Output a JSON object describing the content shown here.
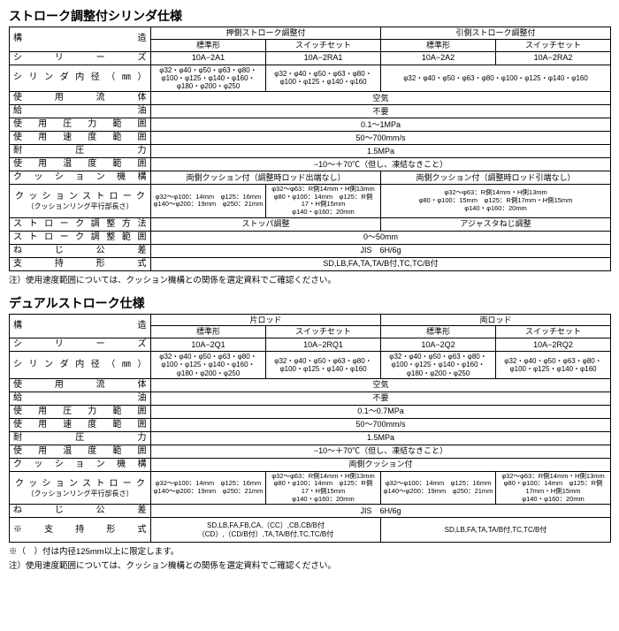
{
  "table1": {
    "title": "ストローク調整付シリンダ仕様",
    "header_group1": "押側ストローク調整付",
    "header_group2": "引側ストローク調整付",
    "sub_std": "標準形",
    "sub_sw": "スイッチセット",
    "rows": {
      "kouzou": "構　　　　　　　　　造",
      "series": "シ　リ　ー　ズ",
      "series_v": [
        "10A−2A1",
        "10A−2RA1",
        "10A−2A2",
        "10A−2RA2"
      ],
      "bore": "シリンダ内径（㎜）",
      "bore_v1": "φ32・φ40・φ50・φ63・φ80・φ100・φ125・φ140・φ160・φ180・φ200・φ250",
      "bore_v2": "φ32・φ40・φ50・φ63・φ80・φ100・φ125・φ140・φ160",
      "bore_v34": "φ32・φ40・φ50・φ63・φ80・φ100・φ125・φ140・φ160",
      "fluid": "使　用　流　体",
      "fluid_v": "空気",
      "oil": "給　　　　　　　油",
      "oil_v": "不要",
      "press": "使 用 圧 力 範 囲",
      "press_v": "0.1〜1MPa",
      "speed": "使 用 速 度 範 囲",
      "speed_v": "50〜700mm/s",
      "proof": "耐　　圧　　力",
      "proof_v": "1.5MPa",
      "temp": "使 用 温 度 範 囲",
      "temp_v": "−10〜＋70℃（但し、凍結なきこと）",
      "cushion": "ク ッ シ ョ ン 機 構",
      "cushion_v12": "両側クッション付（調整時ロッド出端なし）",
      "cushion_v34": "両側クッション付（調整時ロッド引端なし）",
      "cstroke": "クッションストローク",
      "cstroke_sub": "（クッションリング平行部長さ）",
      "cs1": "φ32〜φ100：14mm　φ125：16mm\nφ140〜φ200：19mm　φ250：21mm",
      "cs2": "φ32〜φ63：R側14mm・H側13mm\nφ80・φ100：14mm　φ125：R側17・H側15mm\nφ140・φ160：20mm",
      "cs34": "φ32〜φ63：R側14mm・H側13mm\nφ80・φ100：15mm　φ125：R側17mm・H側15mm\nφ140・φ160：20mm",
      "adjmethod": "ス ト ロ ー ク 調 整 方 法",
      "adj12": "ストッパ調整",
      "adj34": "アジャスタねじ調整",
      "adjrange": "ス ト ロ ー ク 調 整 範 囲",
      "adjrange_v": "0〜50mm",
      "thread": "ね　じ　公　差",
      "thread_v": "JIS　6H/6g",
      "mount": "支　持　形　式",
      "mount_v": "SD,LB,FA,TA,TA/B付,TC,TC/B付"
    },
    "note": "注）使用速度範囲については、クッション機構との関係を選定資料でご確認ください。"
  },
  "table2": {
    "title": "デュアルストローク仕様",
    "header_group1": "片ロッド",
    "header_group2": "両ロッド",
    "sub_std": "標準形",
    "sub_sw": "スイッチセット",
    "rows": {
      "kouzou": "構　　　　　　　　　造",
      "series": "シ　リ　ー　ズ",
      "series_v": [
        "10A−2Q1",
        "10A−2RQ1",
        "10A−2Q2",
        "10A−2RQ2"
      ],
      "bore": "シリンダ内径（㎜）",
      "b1": "φ32・φ40・φ50・φ63・φ80・φ100・φ125・φ140・φ160・φ180・φ200・φ250",
      "b2": "φ32・φ40・φ50・φ63・φ80・φ100・φ125・φ140・φ160",
      "b3": "φ32・φ40・φ50・φ63・φ80・φ100・φ125・φ140・φ160・φ180・φ200・φ250",
      "b4": "φ32・φ40・φ50・φ63・φ80・φ100・φ125・φ140・φ160",
      "fluid": "使　用　流　体",
      "fluid_v": "空気",
      "oil": "給　　　　　　　油",
      "oil_v": "不要",
      "press": "使 用 圧 力 範 囲",
      "press_v": "0.1〜0.7MPa",
      "speed": "使 用 速 度 範 囲",
      "speed_v": "50〜700mm/s",
      "proof": "耐　　圧　　力",
      "proof_v": "1.5MPa",
      "temp": "使 用 温 度 範 囲",
      "temp_v": "−10〜＋70℃（但し、凍結なきこと）",
      "cushion": "ク ッ シ ョ ン 機 構",
      "cushion_v": "両側クッション付",
      "cstroke": "クッションストローク",
      "cstroke_sub": "（クッションリング平行部長さ）",
      "cs1": "φ32〜φ100：14mm　φ125：16mm\nφ140〜φ200：19mm　φ250：21mm",
      "cs2": "φ32〜φ63：R側14mm・H側13mm\nφ80・φ100：14mm　φ125：R側17・H側15mm\nφ140・φ160：20mm",
      "cs3": "φ32〜φ100：14mm　φ125：16mm\nφ140〜φ200：19mm　φ250：21mm",
      "cs4": "φ32〜φ63：R側14mm・H側13mm\nφ80・φ100：14mm　φ125：R側17mm・H側15mm\nφ140・φ160：20mm",
      "thread": "ね　じ　公　差",
      "thread_v": "JIS　6H/6g",
      "mount": "※　支　持　形　式",
      "mount12": "SD,LB,FA,FB,CA,（CC）,CB,CB/B付\n（CD）,（CD/B付）,TA,TA/B付,TC,TC/B付",
      "mount34": "SD,LB,FA,TA,TA/B付,TC,TC/B付"
    },
    "note1": "※（　）付は内径125mm以上に限定します。",
    "note2": "注）使用速度範囲については、クッション機構との関係を選定資料でご確認ください。"
  }
}
